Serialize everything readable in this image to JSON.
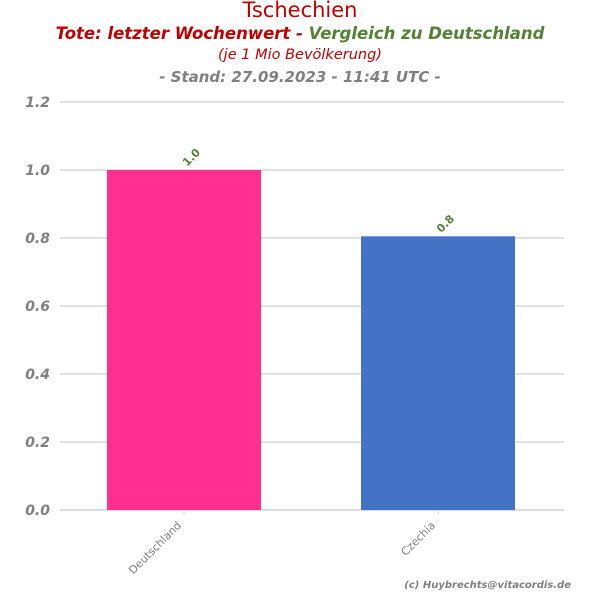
{
  "title": {
    "main": "Tschechien",
    "line2_red": "Tote: letzter Wochenwert - ",
    "line2_green": "Vergleich zu Deutschland",
    "line3": "(je 1 Mio Bevölkerung)",
    "line4": "- Stand: 27.09.2023 - 11:41 UTC -"
  },
  "credit": "(c) Huybrechts@vitacordis.de",
  "chart_data": {
    "type": "bar",
    "categories": [
      "Deutschland",
      "Czechia"
    ],
    "values": [
      1.0,
      0.805
    ],
    "value_labels": [
      "1.0",
      "0.8"
    ],
    "bar_colors": [
      "#ff2e8f",
      "#4472c4"
    ],
    "ylim": [
      0,
      1.2
    ],
    "yticks": [
      "0.0",
      "0.2",
      "0.4",
      "0.6",
      "0.8",
      "1.0",
      "1.2"
    ],
    "grid": true,
    "colors": {
      "grid": "#d9d9d9",
      "tick_label": "#808080",
      "value_label": "#548235"
    }
  }
}
